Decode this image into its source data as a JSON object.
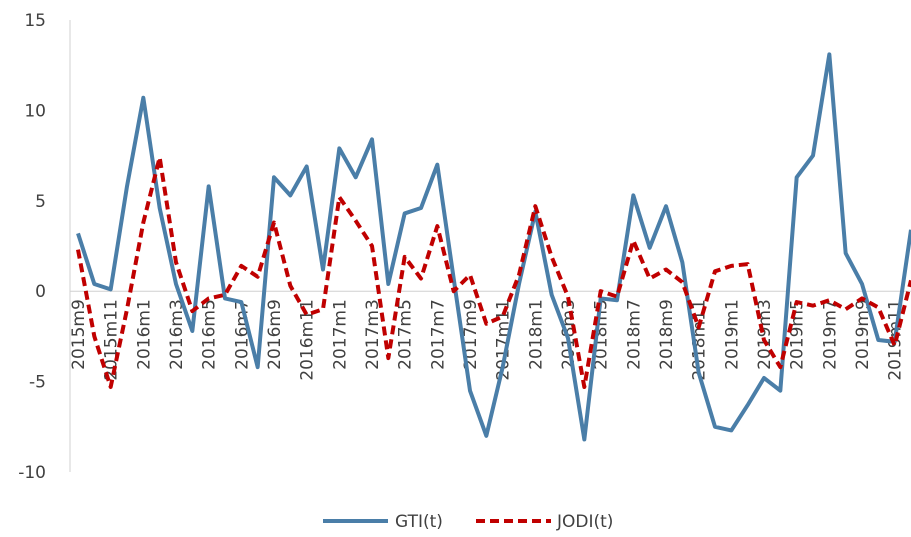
{
  "chart_data": {
    "type": "line",
    "ylim": [
      -10,
      15
    ],
    "yticks": [
      "-10",
      "-5",
      "0",
      "5",
      "10",
      "15"
    ],
    "grid": false,
    "legend": "bottom-center",
    "x_tick_labels": [
      "2015m9",
      "2015m11",
      "2016m1",
      "2016m3",
      "2016m5",
      "2016m7",
      "2016m9",
      "2016m11",
      "2017m1",
      "2017m3",
      "2017m5",
      "2017m7",
      "2017m9",
      "2017m11",
      "2018m1",
      "2018m3",
      "2018m5",
      "2018m7",
      "2018m9",
      "2018m11",
      "2019m1",
      "2019m3",
      "2019m5",
      "2019m7",
      "2019m9",
      "2019m11"
    ],
    "x": [
      "2015m9",
      "2015m10",
      "2015m11",
      "2015m12",
      "2016m1",
      "2016m2",
      "2016m3",
      "2016m4",
      "2016m5",
      "2016m6",
      "2016m7",
      "2016m8",
      "2016m9",
      "2016m10",
      "2016m11",
      "2016m12",
      "2017m1",
      "2017m2",
      "2017m3",
      "2017m4",
      "2017m5",
      "2017m6",
      "2017m7",
      "2017m8",
      "2017m9",
      "2017m10",
      "2017m11",
      "2017m12",
      "2018m1",
      "2018m2",
      "2018m3",
      "2018m4",
      "2018m5",
      "2018m6",
      "2018m7",
      "2018m8",
      "2018m9",
      "2018m10",
      "2018m11",
      "2018m12",
      "2019m1",
      "2019m2",
      "2019m3",
      "2019m4",
      "2019m5",
      "2019m6",
      "2019m7",
      "2019m8",
      "2019m9",
      "2019m10",
      "2019m11",
      "2019m12"
    ],
    "series": [
      {
        "name": "GTI(t)",
        "color": "#4a7ea8",
        "style": "solid",
        "values": [
          3.2,
          0.4,
          0.1,
          5.8,
          10.7,
          4.6,
          0.4,
          -2.2,
          5.8,
          -0.4,
          -0.6,
          -4.2,
          6.3,
          5.3,
          6.9,
          1.2,
          7.9,
          6.3,
          8.4,
          0.4,
          4.3,
          4.6,
          7.0,
          0.7,
          -5.5,
          -8.0,
          -4.2,
          0.4,
          4.4,
          -0.2,
          -2.6,
          -8.2,
          -0.4,
          -0.5,
          5.3,
          2.4,
          4.7,
          1.6,
          -4.5,
          -7.5,
          -7.7,
          -6.3,
          -4.8,
          -5.5,
          6.3,
          7.5,
          13.1,
          2.1,
          0.4,
          -2.7,
          -2.8,
          3.4
        ]
      },
      {
        "name": "JODI(t)",
        "color": "#c00000",
        "style": "dashed",
        "values": [
          2.3,
          -2.5,
          -5.3,
          -1.0,
          3.8,
          7.4,
          1.6,
          -1.1,
          -0.4,
          -0.2,
          1.4,
          0.8,
          3.8,
          0.3,
          -1.3,
          -1.0,
          5.2,
          3.9,
          2.5,
          -3.7,
          1.9,
          0.7,
          3.6,
          0.0,
          0.9,
          -1.8,
          -1.4,
          0.9,
          4.7,
          1.9,
          -0.3,
          -5.3,
          0.0,
          -0.3,
          2.8,
          0.7,
          1.2,
          0.5,
          -2.0,
          1.1,
          1.4,
          1.5,
          -2.7,
          -4.2,
          -0.6,
          -0.8,
          -0.5,
          -1.0,
          -0.4,
          -0.9,
          -3.0,
          0.6
        ]
      }
    ]
  }
}
